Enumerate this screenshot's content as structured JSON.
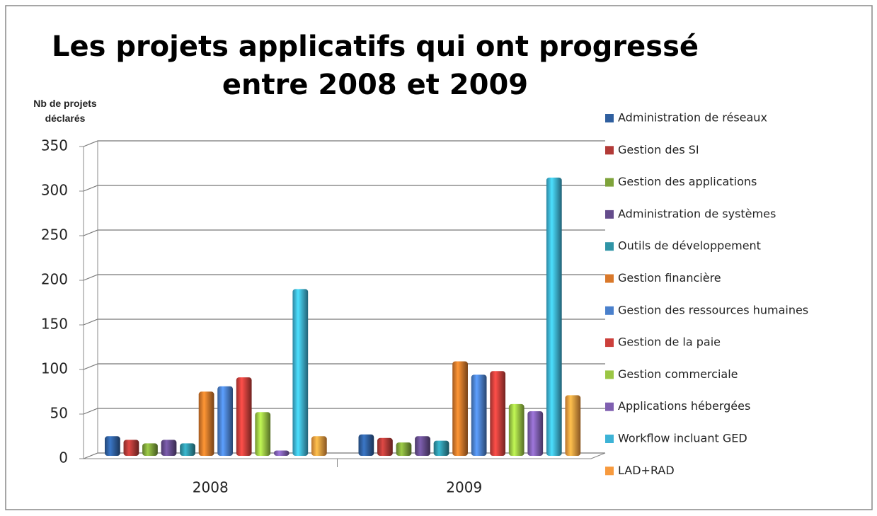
{
  "chart_data": {
    "type": "bar",
    "title": "Les projets applicatifs qui ont progressé entre 2008 et 2009",
    "y_label": "Nb de projets déclarés",
    "categories": [
      "2008",
      "2009"
    ],
    "series": [
      {
        "name": "Administration de réseaux",
        "color": "#2f5f9f",
        "values": [
          22,
          24
        ]
      },
      {
        "name": "Gestion des SI",
        "color": "#b23a37",
        "values": [
          18,
          20
        ]
      },
      {
        "name": "Gestion des applications",
        "color": "#7ea33a",
        "values": [
          14,
          15
        ]
      },
      {
        "name": "Administration de systèmes",
        "color": "#654c8c",
        "values": [
          18,
          22
        ]
      },
      {
        "name": "Outils de développement",
        "color": "#2f94a6",
        "values": [
          14,
          17
        ]
      },
      {
        "name": "Gestion financière",
        "color": "#d9782a",
        "values": [
          72,
          106
        ]
      },
      {
        "name": "Gestion des ressources humaines",
        "color": "#4a80cc",
        "values": [
          78,
          91
        ]
      },
      {
        "name": "Gestion de la paie",
        "color": "#cc3f3b",
        "values": [
          88,
          95
        ]
      },
      {
        "name": "Gestion commerciale",
        "color": "#9bc644",
        "values": [
          49,
          58
        ]
      },
      {
        "name": "Applications hébergées",
        "color": "#7f5fb0",
        "values": [
          6,
          50
        ]
      },
      {
        "name": "Workflow incluant GED",
        "color": "#3db3d6",
        "values": [
          187,
          312
        ]
      },
      {
        "name": "LAD+RAD",
        "color": "#f79a3e",
        "values": [
          22,
          68
        ]
      }
    ],
    "ylim": [
      0,
      350
    ],
    "yticks": [
      0,
      50,
      100,
      150,
      200,
      250,
      300,
      350
    ],
    "grid": true,
    "legend": "right"
  }
}
